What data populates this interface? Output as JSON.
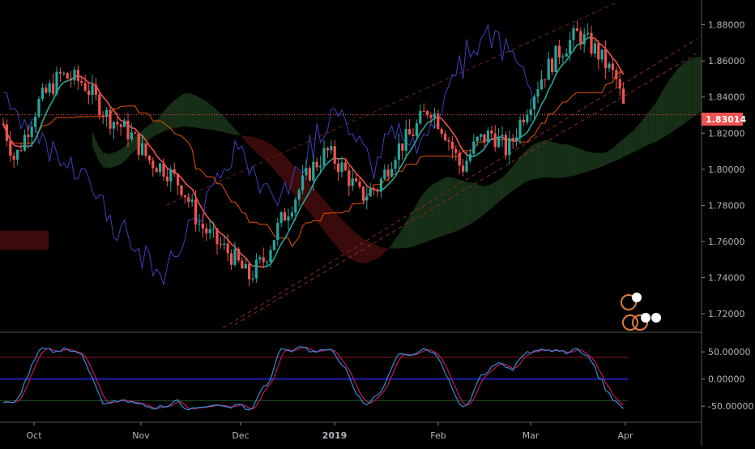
{
  "chart_data": [
    {
      "type": "candlestick",
      "title": "",
      "price_ylim": [
        1.712,
        1.891
      ],
      "y_ticks": [
        "1.88000",
        "1.86000",
        "1.84000",
        "1.82000",
        "1.80000",
        "1.78000",
        "1.76000",
        "1.74000",
        "1.72000"
      ],
      "y_tick_values": [
        1.88,
        1.86,
        1.84,
        1.82,
        1.8,
        1.78,
        1.76,
        1.74,
        1.72
      ],
      "x_labels": [
        "Oct",
        "Nov",
        "Dec",
        "2019",
        "Feb",
        "Mar",
        "Apr"
      ],
      "current_price": "1.83014",
      "current_price_value": 1.83014,
      "colors": {
        "up": "#26a69a",
        "down": "#ef5350",
        "price_line": "#ef5350",
        "conversion": "#26a69a",
        "base": "#e65100",
        "lagging": "#3f3fbf",
        "cloud_bull": "#1b3b1b",
        "cloud_bear": "#4a0e0e"
      },
      "close_path": [
        [
          "Oct",
          1.805
        ],
        [
          "Oct",
          1.836
        ],
        [
          "Oct",
          1.852
        ],
        [
          "Oct",
          1.848
        ],
        [
          "Oct",
          1.83
        ],
        [
          "Oct",
          1.82
        ],
        [
          "Nov",
          1.805
        ],
        [
          "Nov",
          1.8
        ],
        [
          "Nov",
          1.79
        ],
        [
          "Nov",
          1.77
        ],
        [
          "Nov",
          1.76
        ],
        [
          "Nov",
          1.752
        ],
        [
          "Dec",
          1.74
        ],
        [
          "Dec",
          1.75
        ],
        [
          "Dec",
          1.77
        ],
        [
          "Dec",
          1.785
        ],
        [
          "Dec",
          1.8
        ],
        [
          "Dec",
          1.81
        ],
        [
          "2019",
          1.8
        ],
        [
          "2019",
          1.785
        ],
        [
          "2019",
          1.79
        ],
        [
          "2019",
          1.81
        ],
        [
          "2019",
          1.82
        ],
        [
          "2019",
          1.835
        ],
        [
          "Feb",
          1.82
        ],
        [
          "Feb",
          1.8
        ],
        [
          "Feb",
          1.815
        ],
        [
          "Feb",
          1.82
        ],
        [
          "Feb",
          1.81
        ],
        [
          "Feb",
          1.83
        ],
        [
          "Mar",
          1.85
        ],
        [
          "Mar",
          1.865
        ],
        [
          "Mar",
          1.875
        ],
        [
          "Mar",
          1.865
        ],
        [
          "Mar",
          1.85
        ],
        [
          "Apr",
          1.83
        ]
      ]
    },
    {
      "type": "line",
      "title": "",
      "ylim": [
        -75,
        80
      ],
      "y_ticks": [
        "50.00000",
        "0.00000",
        "-50.00000"
      ],
      "y_tick_values": [
        50,
        0,
        -50
      ],
      "upper_level": 40,
      "lower_level": -40,
      "series": [
        {
          "color": "#2f8fd6"
        },
        {
          "color": "#c2185b"
        }
      ]
    }
  ]
}
